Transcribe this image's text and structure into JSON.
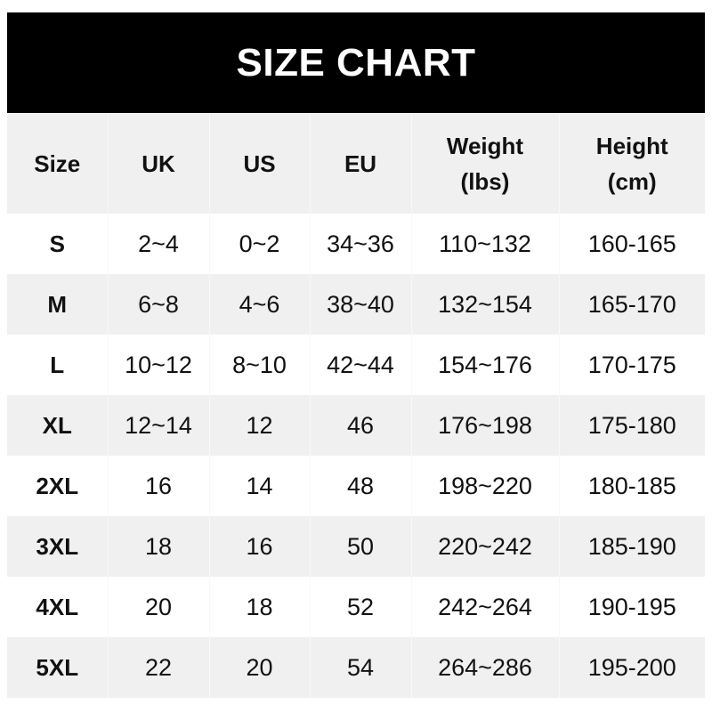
{
  "title": "SIZE CHART",
  "headers": [
    {
      "line1": "Size",
      "line2": ""
    },
    {
      "line1": "UK",
      "line2": ""
    },
    {
      "line1": "US",
      "line2": ""
    },
    {
      "line1": "EU",
      "line2": ""
    },
    {
      "line1": "Weight",
      "line2": "(lbs)"
    },
    {
      "line1": "Height",
      "line2": "(cm)"
    }
  ],
  "rows": [
    [
      "S",
      "2~4",
      "0~2",
      "34~36",
      "110~132",
      "160-165"
    ],
    [
      "M",
      "6~8",
      "4~6",
      "38~40",
      "132~154",
      "165-170"
    ],
    [
      "L",
      "10~12",
      "8~10",
      "42~44",
      "154~176",
      "170-175"
    ],
    [
      "XL",
      "12~14",
      "12",
      "46",
      "176~198",
      "175-180"
    ],
    [
      "2XL",
      "16",
      "14",
      "48",
      "198~220",
      "180-185"
    ],
    [
      "3XL",
      "18",
      "16",
      "50",
      "220~242",
      "185-190"
    ],
    [
      "4XL",
      "20",
      "18",
      "52",
      "242~264",
      "190-195"
    ],
    [
      "5XL",
      "22",
      "20",
      "54",
      "264~286",
      "195-200"
    ]
  ],
  "colors": {
    "banner": "#000000",
    "stripe": "#f0f0f0"
  }
}
